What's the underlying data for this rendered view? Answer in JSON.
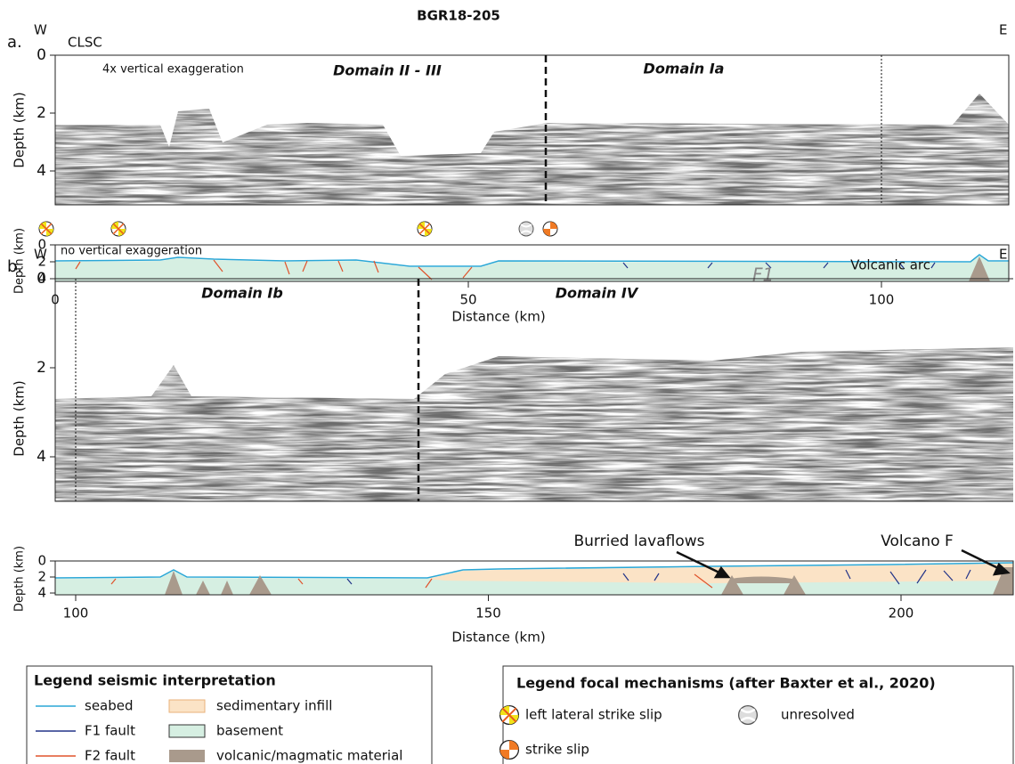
{
  "title": "BGR18-205",
  "panel_a": {
    "label": "a.",
    "west": "W",
    "east": "E",
    "site": "CLSC",
    "exaggeration": "4x vertical exaggeration",
    "domains": [
      "Domain II - III",
      "Domain Ia"
    ],
    "depth_axis": {
      "label": "Depth (km)",
      "ticks": [
        0,
        2,
        4
      ]
    },
    "profile": {
      "note": "no vertical exaggeration",
      "fault_label": "F1",
      "depth_axis": {
        "label": "Depth (km)",
        "ticks": [
          0,
          2,
          4
        ]
      },
      "distance_axis": {
        "label": "Distance (km)",
        "ticks": [
          0,
          50,
          100
        ]
      }
    }
  },
  "panel_b": {
    "label": "b.",
    "west": "W",
    "east": "E",
    "arc": "Volcanic arc",
    "domains": [
      "Domain Ib",
      "Domain IV"
    ],
    "depth_axis": {
      "label": "Depth (km)",
      "ticks": [
        0,
        2,
        4
      ]
    },
    "profile": {
      "annotations": [
        "Burried lavaflows",
        "Volcano F"
      ],
      "depth_axis": {
        "label": "Depth (km)",
        "ticks": [
          0,
          2,
          4
        ]
      },
      "distance_axis": {
        "label": "Distance (km)",
        "ticks": [
          100,
          150,
          200
        ]
      }
    }
  },
  "legend_seismic": {
    "title": "Legend seismic interpretation",
    "items": [
      "seabed",
      "F1 fault",
      "F2 fault",
      "sedimentary infill",
      "basement",
      "volcanic/magmatic material"
    ]
  },
  "legend_focal": {
    "title": "Legend focal mechanisms (after Baxter et al., 2020)",
    "items": [
      "left lateral strike slip",
      "strike slip",
      "unresolved"
    ]
  }
}
